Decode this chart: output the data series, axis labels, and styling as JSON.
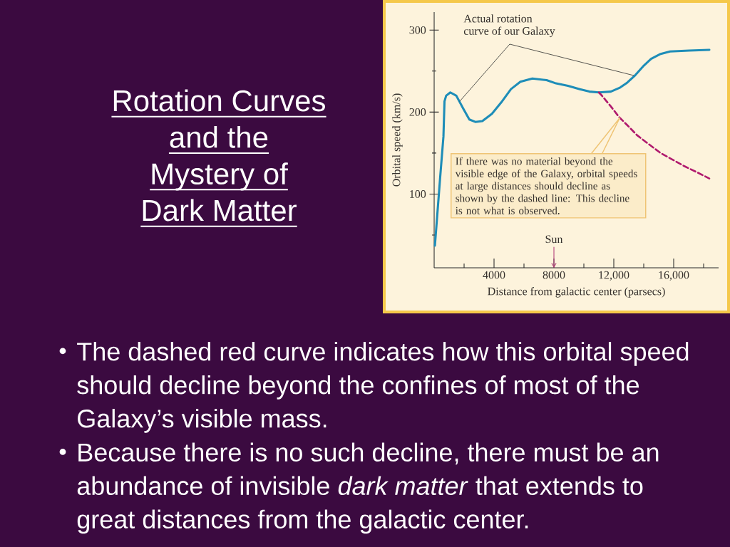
{
  "chart_data": {
    "type": "line",
    "title": "Rotation Curves and the Mystery of Dark Matter",
    "xlabel": "Distance from galactic center (parsecs)",
    "ylabel": "Orbital speed (km/s)",
    "xlim": [
      0,
      19000
    ],
    "ylim": [
      10,
      322
    ],
    "xticks": [
      {
        "value": 2000,
        "label": null
      },
      4000,
      {
        "value": 6000,
        "label": null
      },
      8000,
      {
        "value": 10000,
        "label": null
      },
      {
        "value": 12000,
        "label": "12,000"
      },
      {
        "value": 14000,
        "label": null
      },
      {
        "value": 16000,
        "label": "16,000"
      },
      {
        "value": 18000,
        "label": null
      }
    ],
    "yticks": [
      {
        "value": 50,
        "label": null
      },
      100,
      {
        "value": 150,
        "label": null
      },
      200,
      {
        "value": 250,
        "label": null
      },
      300
    ],
    "series": [
      {
        "color": "#1e8db8",
        "line_style": "solid",
        "x": [
          50,
          400,
          620,
          690,
          800,
          1080,
          1480,
          1950,
          2350,
          2750,
          3220,
          3860,
          4490,
          5130,
          5760,
          6560,
          7510,
          8140,
          8940,
          9730,
          10370,
          11000,
          11800,
          12430,
          12900,
          13380,
          14020,
          14490,
          15130,
          15760,
          17030,
          18380
        ],
        "values": [
          37,
          120,
          170,
          213,
          220,
          224,
          220,
          204,
          191,
          188,
          189,
          198,
          212,
          228,
          237,
          241,
          239,
          235,
          232,
          228,
          225,
          224,
          225,
          230,
          236,
          244,
          257,
          265,
          271,
          274,
          275,
          276
        ]
      },
      {
        "color": "#b01a6e",
        "line_style": "dashed",
        "x": [
          11000,
          11160,
          11800,
          12350,
          12900,
          13540,
          14180,
          15130,
          15920,
          16710,
          17510,
          18380
        ],
        "values": [
          224,
          221,
          207,
          194,
          184,
          172,
          163,
          150,
          142,
          134,
          127,
          119
        ]
      }
    ],
    "ref_lines": [
      {
        "axis": "x",
        "value": 8000,
        "label": "Sun",
        "color": "#b23a78"
      }
    ],
    "annotations": [
      {
        "text": "Actual rotation curve of our Galaxy",
        "x": 1700,
        "y": 213
      },
      {
        "text": "If there was no material beyond the visible edge of the Galaxy, orbital speeds at large distances should decline as shown by the dashed line: This decline is not what is observed.",
        "x": 12400,
        "y": 193
      },
      "The dashed red curve indicates how this orbital speed should decline beyond the confines of most of the Galaxy’s visible mass.",
      "Because there is no such decline, there must be an abundance of invisible *dark matter* that extends to great distances from the galactic center."
    ]
  }
}
